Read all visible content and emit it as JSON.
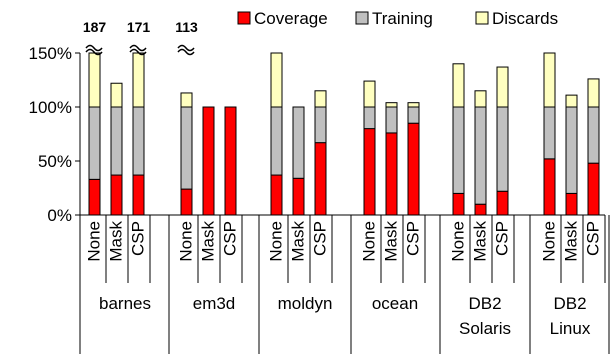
{
  "chart_data": {
    "type": "bar",
    "stacked": true,
    "title": "",
    "xlabel": "",
    "ylabel": "",
    "ylim": [
      0,
      150
    ],
    "yticks": [
      "0%",
      "50%",
      "100%",
      "150%"
    ],
    "grid": false,
    "legend_position": "top",
    "legend": [
      {
        "name": "Coverage",
        "color": "#ff0000"
      },
      {
        "name": "Training",
        "color": "#c0c0c0"
      },
      {
        "name": "Discards",
        "color": "#ffffc0"
      }
    ],
    "groups": [
      {
        "name": [
          "barnes"
        ],
        "bars": [
          {
            "label": "None",
            "coverage": 33,
            "training": 67,
            "discards": 87,
            "overflow_label": "187"
          },
          {
            "label": "Mask",
            "coverage": 37,
            "training": 63,
            "discards": 22
          },
          {
            "label": "CSP",
            "coverage": 37,
            "training": 63,
            "discards": 71,
            "overflow_label": "171"
          }
        ]
      },
      {
        "name": [
          "em3d"
        ],
        "bars": [
          {
            "label": "None",
            "coverage": 24,
            "training": 76,
            "discards": 13,
            "overflow_label": "113"
          },
          {
            "label": "Mask",
            "coverage": 100,
            "training": 0,
            "discards": 0
          },
          {
            "label": "CSP",
            "coverage": 100,
            "training": 0,
            "discards": 0
          }
        ]
      },
      {
        "name": [
          "moldyn"
        ],
        "bars": [
          {
            "label": "None",
            "coverage": 37,
            "training": 63,
            "discards": 53
          },
          {
            "label": "Mask",
            "coverage": 34,
            "training": 66,
            "discards": 0
          },
          {
            "label": "CSP",
            "coverage": 67,
            "training": 33,
            "discards": 15
          }
        ]
      },
      {
        "name": [
          "ocean"
        ],
        "bars": [
          {
            "label": "None",
            "coverage": 80,
            "training": 20,
            "discards": 24
          },
          {
            "label": "Mask",
            "coverage": 76,
            "training": 24,
            "discards": 4
          },
          {
            "label": "CSP",
            "coverage": 85,
            "training": 15,
            "discards": 4
          }
        ]
      },
      {
        "name": [
          "DB2",
          "Solaris"
        ],
        "bars": [
          {
            "label": "None",
            "coverage": 20,
            "training": 80,
            "discards": 40
          },
          {
            "label": "Mask",
            "coverage": 10,
            "training": 90,
            "discards": 15
          },
          {
            "label": "CSP",
            "coverage": 22,
            "training": 78,
            "discards": 37
          }
        ]
      },
      {
        "name": [
          "DB2",
          "Linux"
        ],
        "bars": [
          {
            "label": "None",
            "coverage": 52,
            "training": 48,
            "discards": 55
          },
          {
            "label": "Mask",
            "coverage": 20,
            "training": 80,
            "discards": 11
          },
          {
            "label": "CSP",
            "coverage": 48,
            "training": 52,
            "discards": 26
          }
        ]
      }
    ]
  }
}
